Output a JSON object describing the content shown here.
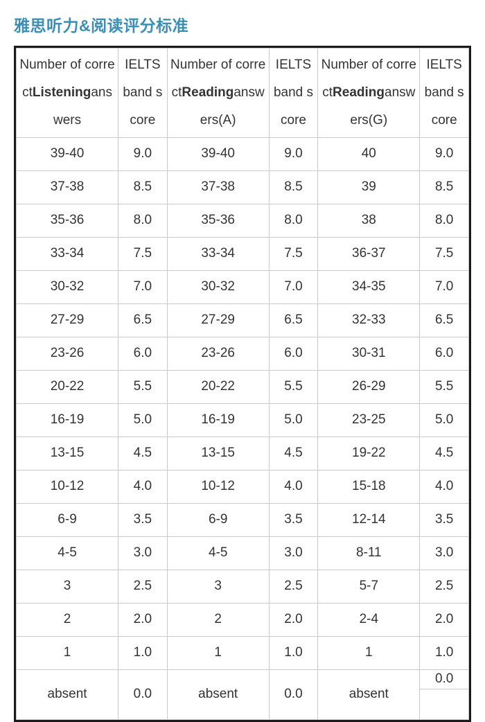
{
  "title": "雅思听力&阅读评分标准",
  "headers": {
    "col1": {
      "pre": "Number of correct",
      "bold": "Listening",
      "post": "answers"
    },
    "col2": "IELTS band score",
    "col3": {
      "pre": "Number of correct",
      "bold": "Reading",
      "post": "answers(A)"
    },
    "col4": "IELTS band score",
    "col5": {
      "pre": "Number of correct",
      "bold": "Reading",
      "post": "answers(G)"
    },
    "col6": "IELTS band score"
  },
  "rows": [
    {
      "c1": "39-40",
      "c2": "9.0",
      "c3": "39-40",
      "c4": "9.0",
      "c5": "40",
      "c6": "9.0"
    },
    {
      "c1": "37-38",
      "c2": "8.5",
      "c3": "37-38",
      "c4": "8.5",
      "c5": "39",
      "c6": "8.5"
    },
    {
      "c1": "35-36",
      "c2": "8.0",
      "c3": "35-36",
      "c4": "8.0",
      "c5": "38",
      "c6": "8.0"
    },
    {
      "c1": "33-34",
      "c2": "7.5",
      "c3": "33-34",
      "c4": "7.5",
      "c5": "36-37",
      "c6": "7.5"
    },
    {
      "c1": "30-32",
      "c2": "7.0",
      "c3": "30-32",
      "c4": "7.0",
      "c5": "34-35",
      "c6": "7.0"
    },
    {
      "c1": "27-29",
      "c2": "6.5",
      "c3": "27-29",
      "c4": "6.5",
      "c5": "32-33",
      "c6": "6.5"
    },
    {
      "c1": "23-26",
      "c2": "6.0",
      "c3": "23-26",
      "c4": "6.0",
      "c5": "30-31",
      "c6": "6.0"
    },
    {
      "c1": "20-22",
      "c2": "5.5",
      "c3": "20-22",
      "c4": "5.5",
      "c5": "26-29",
      "c6": "5.5"
    },
    {
      "c1": "16-19",
      "c2": "5.0",
      "c3": "16-19",
      "c4": "5.0",
      "c5": "23-25",
      "c6": "5.0"
    },
    {
      "c1": "13-15",
      "c2": "4.5",
      "c3": "13-15",
      "c4": "4.5",
      "c5": "19-22",
      "c6": "4.5"
    },
    {
      "c1": "10-12",
      "c2": "4.0",
      "c3": "10-12",
      "c4": "4.0",
      "c5": "15-18",
      "c6": "4.0"
    },
    {
      "c1": "6-9",
      "c2": "3.5",
      "c3": "6-9",
      "c4": "3.5",
      "c5": "12-14",
      "c6": "3.5"
    },
    {
      "c1": "4-5",
      "c2": "3.0",
      "c3": "4-5",
      "c4": "3.0",
      "c5": "8-11",
      "c6": "3.0"
    },
    {
      "c1": "3",
      "c2": "2.5",
      "c3": "3",
      "c4": "2.5",
      "c5": "5-7",
      "c6": "2.5"
    },
    {
      "c1": "2",
      "c2": "2.0",
      "c3": "2",
      "c4": "2.0",
      "c5": "2-4",
      "c6": "2.0"
    },
    {
      "c1": "1",
      "c2": "1.0",
      "c3": "1",
      "c4": "1.0",
      "c5": "1",
      "c6": "1.0"
    }
  ],
  "lastRow": {
    "c1": "absent",
    "c2": "0.0",
    "c3": "absent",
    "c4": "0.0",
    "c5": "absent",
    "c6_top": "0.0",
    "c6_bottom": ""
  },
  "style": {
    "title_color": "#3a8fb7",
    "text_color": "#333333",
    "border_outer_color": "#1a1a1a",
    "border_inner_color": "#c8c8c8",
    "background_color": "#ffffff",
    "title_fontsize": 23,
    "cell_fontsize": 19
  }
}
